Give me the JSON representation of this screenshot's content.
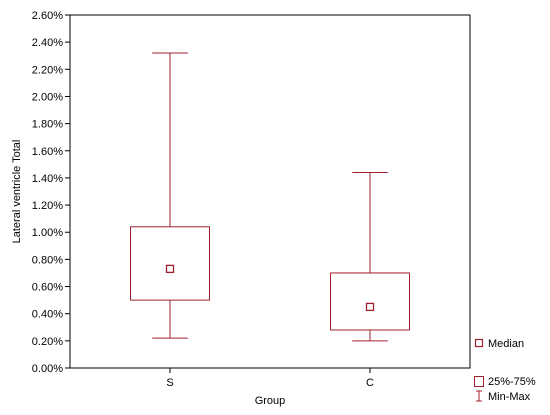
{
  "chart_data": {
    "type": "boxplot",
    "title": "",
    "xlabel": "Group",
    "ylabel": "Lateral ventricle Total",
    "ylim": [
      0,
      2.6
    ],
    "y_ticks": [
      0,
      0.2,
      0.4,
      0.6,
      0.8,
      1.0,
      1.2,
      1.4,
      1.6,
      1.8,
      2.0,
      2.2,
      2.4,
      2.6
    ],
    "y_tick_labels": [
      "0.00%",
      "0.20%",
      "0.40%",
      "0.60%",
      "0.80%",
      "1.00%",
      "1.20%",
      "1.40%",
      "1.60%",
      "1.80%",
      "2.00%",
      "2.20%",
      "2.40%",
      "2.60%"
    ],
    "categories": [
      "S",
      "C"
    ],
    "boxes": [
      {
        "category": "S",
        "min": 0.22,
        "q1": 0.5,
        "median": 0.73,
        "q3": 1.04,
        "max": 2.32
      },
      {
        "category": "C",
        "min": 0.2,
        "q1": 0.28,
        "median": 0.45,
        "q3": 0.7,
        "max": 1.44
      }
    ],
    "legend": [
      "Median",
      "25%-75%",
      "Min-Max"
    ],
    "legend_position": "bottom-right",
    "grid": false,
    "color": "#a0212b"
  }
}
